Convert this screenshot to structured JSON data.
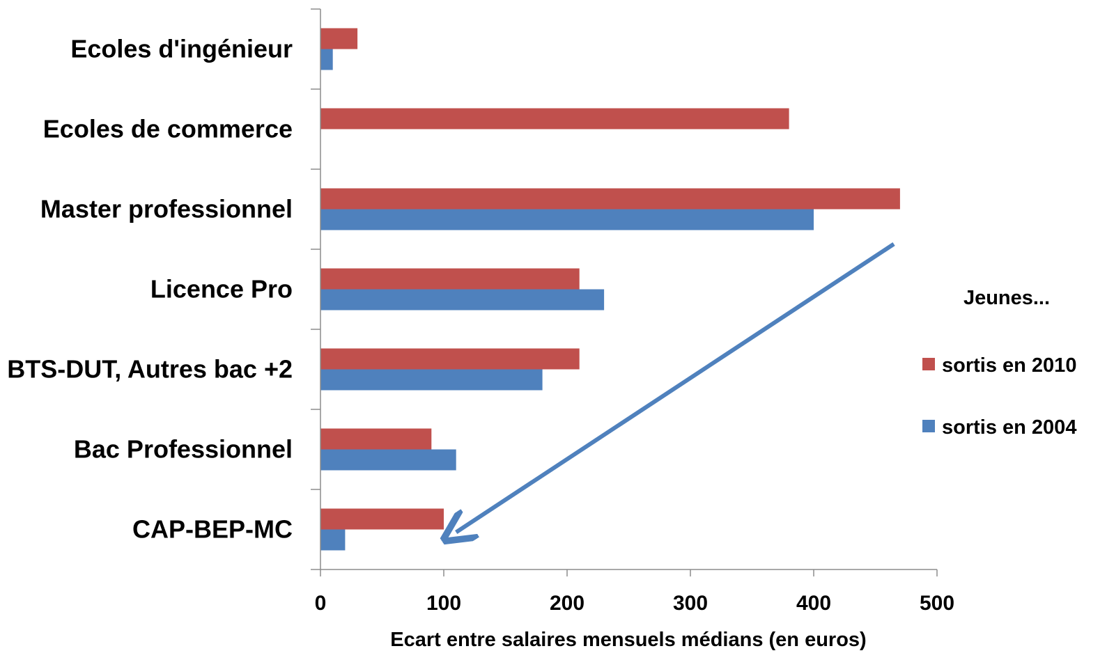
{
  "chart_data": {
    "type": "bar",
    "orientation": "horizontal",
    "categories": [
      "Ecoles d'ingénieur",
      "Ecoles de commerce",
      "Master professionnel",
      "Licence Pro",
      "BTS-DUT, Autres bac +2",
      "Bac Professionnel",
      "CAP-BEP-MC"
    ],
    "series": [
      {
        "name": "sortis en 2010",
        "color": "#C0504D",
        "values": [
          30,
          380,
          470,
          210,
          210,
          90,
          100
        ]
      },
      {
        "name": "sortis en 2004",
        "color": "#4F81BD",
        "values": [
          10,
          0,
          400,
          230,
          180,
          110,
          20
        ]
      }
    ],
    "xlabel": "Ecart entre salaires mensuels médians (en euros)",
    "xlim": [
      0,
      500
    ],
    "xticks": [
      "0",
      "100",
      "200",
      "300",
      "400",
      "500"
    ],
    "grid": false,
    "legend": {
      "title": "Jeunes...",
      "placement": "right"
    },
    "annotation": {
      "type": "arrow",
      "color": "#4F81BD",
      "from": {
        "x": 465,
        "category": "Master professionnel"
      },
      "to": {
        "x": 110,
        "category": "CAP-BEP-MC"
      }
    }
  }
}
